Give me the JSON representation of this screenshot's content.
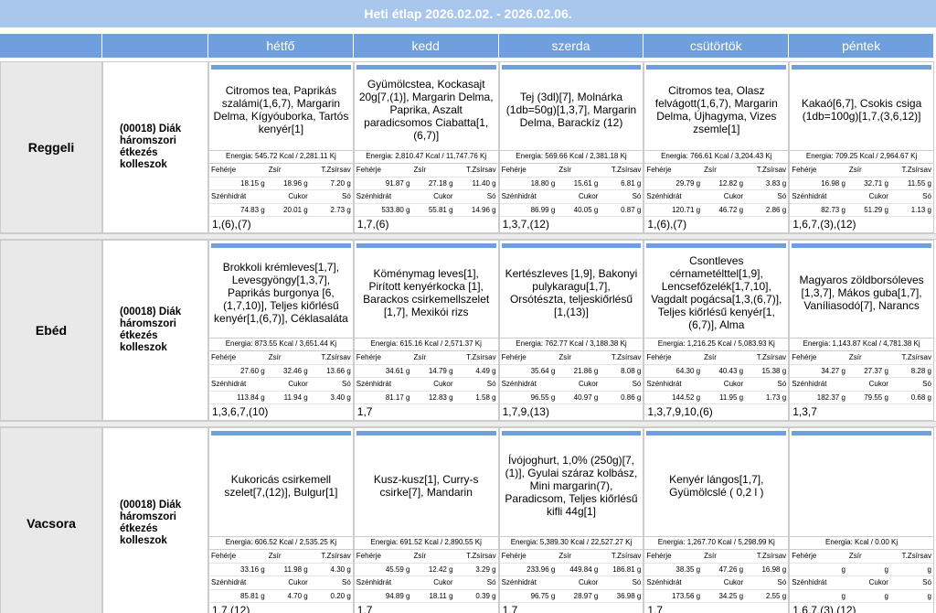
{
  "header": {
    "title": "Heti étlap 2026.02.02. - 2026.02.06.",
    "days": [
      "hétfő",
      "kedd",
      "szerda",
      "csütörtök",
      "péntek"
    ]
  },
  "labels": [
    "Fehérje",
    "Zsír",
    "T.Zsírsav",
    "Szénhidrát",
    "Cukor",
    "Só"
  ],
  "meals": [
    {
      "name": "Reggeli",
      "group": "(00018) Diák háromszori étkezés kolleszok",
      "days": [
        {
          "menu": "Citromos tea, Paprikás szalámi(1,6,7), Margarin Delma, Kígyóuborka, Tartós kenyér[1]",
          "energy": "Energia: 545.72 Kcal / 2,281.11 Kj",
          "nutrients": [
            "18.15 g",
            "18.96 g",
            "7.20 g",
            "74.83 g",
            "20.01 g",
            "2.73 g"
          ],
          "allergens": "1,(6),(7)"
        },
        {
          "menu": "Gyümölcstea, Kockasajt 20g[7,(1)], Margarin Delma, Paprika, Aszalt paradicsomos Ciabatta[1,(6,7)]",
          "energy": "Energia: 2,810.47 Kcal / 11,747.76 Kj",
          "nutrients": [
            "91.87 g",
            "27.18 g",
            "11.40 g",
            "533.80 g",
            "55.81 g",
            "14.96 g"
          ],
          "allergens": "1,7,(6)"
        },
        {
          "menu": "Tej (3dl)[7], Molnárka (1db=50g)[1,3,7], Margarin Delma, Barackíz (12)",
          "energy": "Energia: 569.66 Kcal / 2,381.18 Kj",
          "nutrients": [
            "18.80 g",
            "15.61 g",
            "6.81 g",
            "86.99 g",
            "40.05 g",
            "0.87 g"
          ],
          "allergens": "1,3,7,(12)"
        },
        {
          "menu": "Citromos tea, Olasz felvágott(1,6,7), Margarin Delma, Újhagyma, Vizes zsemle[1]",
          "energy": "Energia: 766.61 Kcal / 3,204.43 Kj",
          "nutrients": [
            "29.79 g",
            "12.82 g",
            "3.83 g",
            "120.71 g",
            "46.72 g",
            "2.86 g"
          ],
          "allergens": "1,(6),(7)"
        },
        {
          "menu": "Kakaó[6,7], Csokis csiga (1db=100g)[1,7,(3,6,12)]",
          "energy": "Energia: 709.25 Kcal / 2,964.67 Kj",
          "nutrients": [
            "16.98 g",
            "32.71 g",
            "11.55 g",
            "82.73 g",
            "51.29 g",
            "1.13 g"
          ],
          "allergens": "1,6,7,(3),(12)"
        }
      ]
    },
    {
      "name": "Ebéd",
      "group": "(00018) Diák háromszori étkezés kolleszok",
      "days": [
        {
          "menu": "Brokkoli krémleves[1,7], Levesgyöngy[1,3,7], Paprikás burgonya [6,(1,7,10)], Teljes kiőrlésű kenyér[1,(6,7)], Céklasaláta",
          "energy": "Energia: 873.55 Kcal / 3,651.44 Kj",
          "nutrients": [
            "27.60 g",
            "32.46 g",
            "13.66 g",
            "113.84 g",
            "11.94 g",
            "3.40 g"
          ],
          "allergens": "1,3,6,7,(10)"
        },
        {
          "menu": "Köménymag leves[1], Pirított kenyérkocka [1], Barackos csirkemellszelet [1,7], Mexikói rizs",
          "energy": "Energia: 615.16 Kcal / 2,571.37 Kj",
          "nutrients": [
            "34.61 g",
            "14.79 g",
            "4.49 g",
            "81.17 g",
            "12.83 g",
            "1.58 g"
          ],
          "allergens": "1,7"
        },
        {
          "menu": "Kertészleves [1,9], Bakonyi pulykaragu[1,7], Orsótészta, teljeskiőrlésű [1,(13)]",
          "energy": "Energia: 762.77 Kcal / 3,188.38 Kj",
          "nutrients": [
            "35.64 g",
            "21.86 g",
            "8.08 g",
            "96.55 g",
            "40.97 g",
            "0.86 g"
          ],
          "allergens": "1,7,9,(13)"
        },
        {
          "menu": "Csontleves cérnametélttel[1,9], Lencsefőzelék[1,7,10], Vagdalt pogácsa[1,3,(6,7)], Teljes kiőrlésű kenyér[1,(6,7)], Alma",
          "energy": "Energia: 1,216.25 Kcal / 5,083.93 Kj",
          "nutrients": [
            "64.30 g",
            "40.43 g",
            "15.38 g",
            "144.52 g",
            "11.95 g",
            "1.73 g"
          ],
          "allergens": "1,3,7,9,10,(6)"
        },
        {
          "menu": "Magyaros zöldborsóleves [1,3,7], Mákos guba[1,7], Vaníliasodó[7], Narancs",
          "energy": "Energia: 1,143.87 Kcal / 4,781.38 Kj",
          "nutrients": [
            "34.27 g",
            "27.37 g",
            "8.28 g",
            "182.37 g",
            "79.55 g",
            "0.68 g"
          ],
          "allergens": "1,3,7"
        }
      ]
    },
    {
      "name": "Vacsora",
      "group": "(00018) Diák háromszori étkezés kolleszok",
      "days": [
        {
          "menu": "Kukoricás csirkemell szelet[7,(12)], Bulgur[1]",
          "energy": "Energia: 606.52 Kcal / 2,535.25 Kj",
          "nutrients": [
            "33.16 g",
            "11.98 g",
            "4.30 g",
            "85.81 g",
            "4.70 g",
            "0.20 g"
          ],
          "allergens": "1,7,(12)"
        },
        {
          "menu": "Kusz-kusz[1], Curry-s csirke[7], Mandarin",
          "energy": "Energia: 691.52 Kcal / 2,890.55 Kj",
          "nutrients": [
            "45.59 g",
            "12.42 g",
            "3.29 g",
            "94.89 g",
            "18.11 g",
            "0.39 g"
          ],
          "allergens": "1,7"
        },
        {
          "menu": "Ívójoghurt, 1,0% (250g)[7,(1)], Gyulai száraz kolbász, Mini margarin(7), Paradicsom, Teljes kiőrlésű kifli 44g[1]",
          "energy": "Energia: 5,389.30 Kcal / 22,527.27 Kj",
          "nutrients": [
            "233.96 g",
            "449.84 g",
            "186.81 g",
            "96.75 g",
            "28.97 g",
            "36.98 g"
          ],
          "allergens": "1,7"
        },
        {
          "menu": "Kenyér lángos[1,7], Gyümölcslé ( 0,2 l )",
          "energy": "Energia: 1,267.70 Kcal / 5,298.99 Kj",
          "nutrients": [
            "38.35 g",
            "47.26 g",
            "16.98 g",
            "173.56 g",
            "34.25 g",
            "2.55 g"
          ],
          "allergens": "1,7"
        },
        {
          "energy": "Energia:  Kcal / 0.00 Kj",
          "nutrients": [
            "g",
            "g",
            "g",
            "g",
            "g",
            "g"
          ],
          "allergens": "1,6,7,(3),(12)"
        }
      ]
    }
  ]
}
